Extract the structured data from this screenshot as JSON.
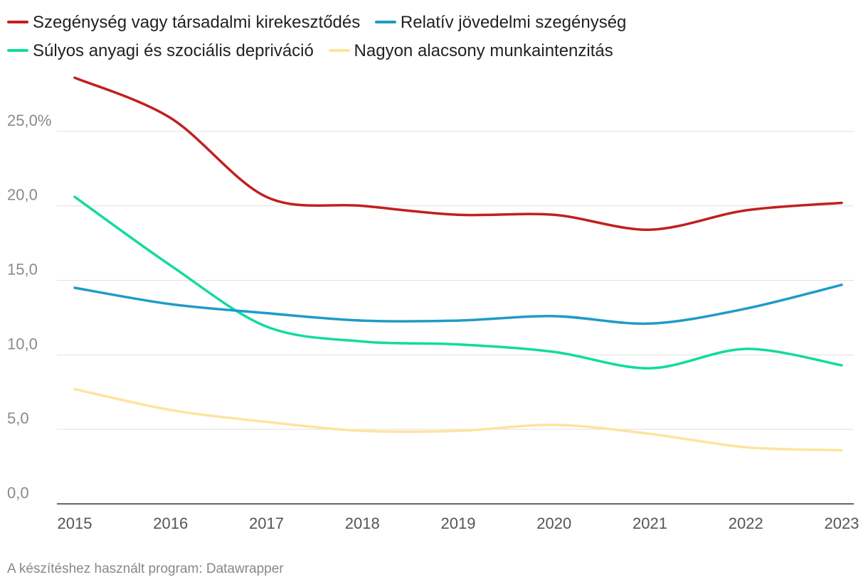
{
  "chart_data": {
    "type": "line",
    "x": [
      "2015",
      "2016",
      "2017",
      "2018",
      "2019",
      "2020",
      "2021",
      "2022",
      "2023"
    ],
    "ylim": [
      0,
      30
    ],
    "yticks": [
      0,
      5,
      10,
      15,
      20,
      25
    ],
    "ytick_labels": [
      "0,0",
      "5,0",
      "10,0",
      "15,0",
      "20,0",
      "25,0%"
    ],
    "grid": true,
    "legend_position": "top",
    "series": [
      {
        "name": "Szegénység vagy társadalmi kirekesztődés",
        "color": "#c0201f",
        "values": [
          28.6,
          25.9,
          20.6,
          20.0,
          19.4,
          19.4,
          18.4,
          19.7,
          20.2
        ]
      },
      {
        "name": "Relatív jövedelmi szegénység",
        "color": "#1f9bc8",
        "values": [
          14.5,
          13.4,
          12.8,
          12.3,
          12.3,
          12.6,
          12.1,
          13.1,
          14.7
        ]
      },
      {
        "name": "Súlyos anyagi és szociális depriváció",
        "color": "#11dba0",
        "values": [
          20.6,
          16.0,
          11.9,
          10.9,
          10.7,
          10.2,
          9.1,
          10.4,
          9.3
        ]
      },
      {
        "name": "Nagyon alacsony munkaintenzitás",
        "color": "#fde49e",
        "values": [
          7.7,
          6.3,
          5.5,
          4.9,
          4.9,
          5.3,
          4.7,
          3.8,
          3.6
        ]
      }
    ]
  },
  "footer": "A készítéshez használt program: Datawrapper"
}
